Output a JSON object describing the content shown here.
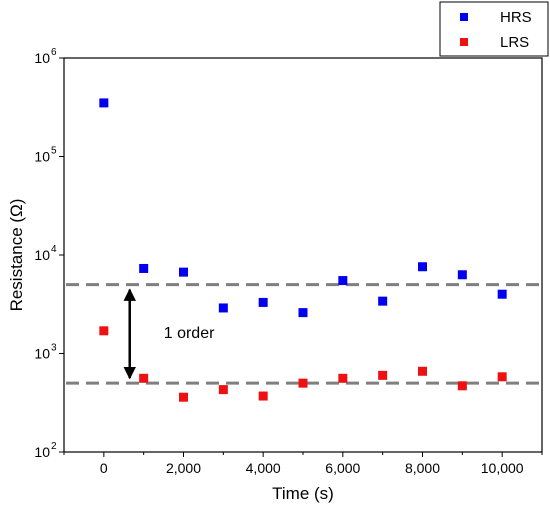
{
  "chart_data": {
    "type": "scatter",
    "xlabel": "Time (s)",
    "ylabel": "Resistance (Ω)",
    "xlim": [
      -1000,
      11000
    ],
    "ylim": [
      100,
      1000000
    ],
    "yscale": "log",
    "grid": false,
    "legend_position": "top-right",
    "x_ticks": [
      {
        "value": 0,
        "label": "0"
      },
      {
        "value": 2000,
        "label": "2,000"
      },
      {
        "value": 4000,
        "label": "4,000"
      },
      {
        "value": 6000,
        "label": "6,000"
      },
      {
        "value": 8000,
        "label": "8,000"
      },
      {
        "value": 10000,
        "label": "10,000"
      }
    ],
    "y_ticks": [
      {
        "value": 100,
        "base": "10",
        "exp": "2"
      },
      {
        "value": 1000,
        "base": "10",
        "exp": "3"
      },
      {
        "value": 10000,
        "base": "10",
        "exp": "4"
      },
      {
        "value": 100000,
        "base": "10",
        "exp": "5"
      },
      {
        "value": 1000000,
        "base": "10",
        "exp": "6"
      }
    ],
    "series": [
      {
        "name": "HRS",
        "color": "#0000ee",
        "x": [
          0,
          1000,
          2000,
          3000,
          4000,
          5000,
          6000,
          7000,
          8000,
          9000,
          10000
        ],
        "y": [
          350000,
          7300,
          6700,
          2900,
          3300,
          2600,
          5500,
          3400,
          7600,
          6300,
          4000
        ]
      },
      {
        "name": "LRS",
        "color": "#ee1111",
        "x": [
          0,
          1000,
          2000,
          3000,
          4000,
          5000,
          6000,
          7000,
          8000,
          9000,
          10000
        ],
        "y": [
          1700,
          560,
          360,
          430,
          370,
          500,
          560,
          600,
          660,
          470,
          580
        ]
      }
    ],
    "reference_lines": [
      {
        "y": 5000,
        "style": "dashed",
        "color": "#7f7f7f"
      },
      {
        "y": 500,
        "style": "dashed",
        "color": "#7f7f7f"
      }
    ],
    "annotations": [
      {
        "text": "1 order",
        "arrow": "double",
        "x": 650,
        "y_from": 5000,
        "y_to": 500
      }
    ]
  }
}
